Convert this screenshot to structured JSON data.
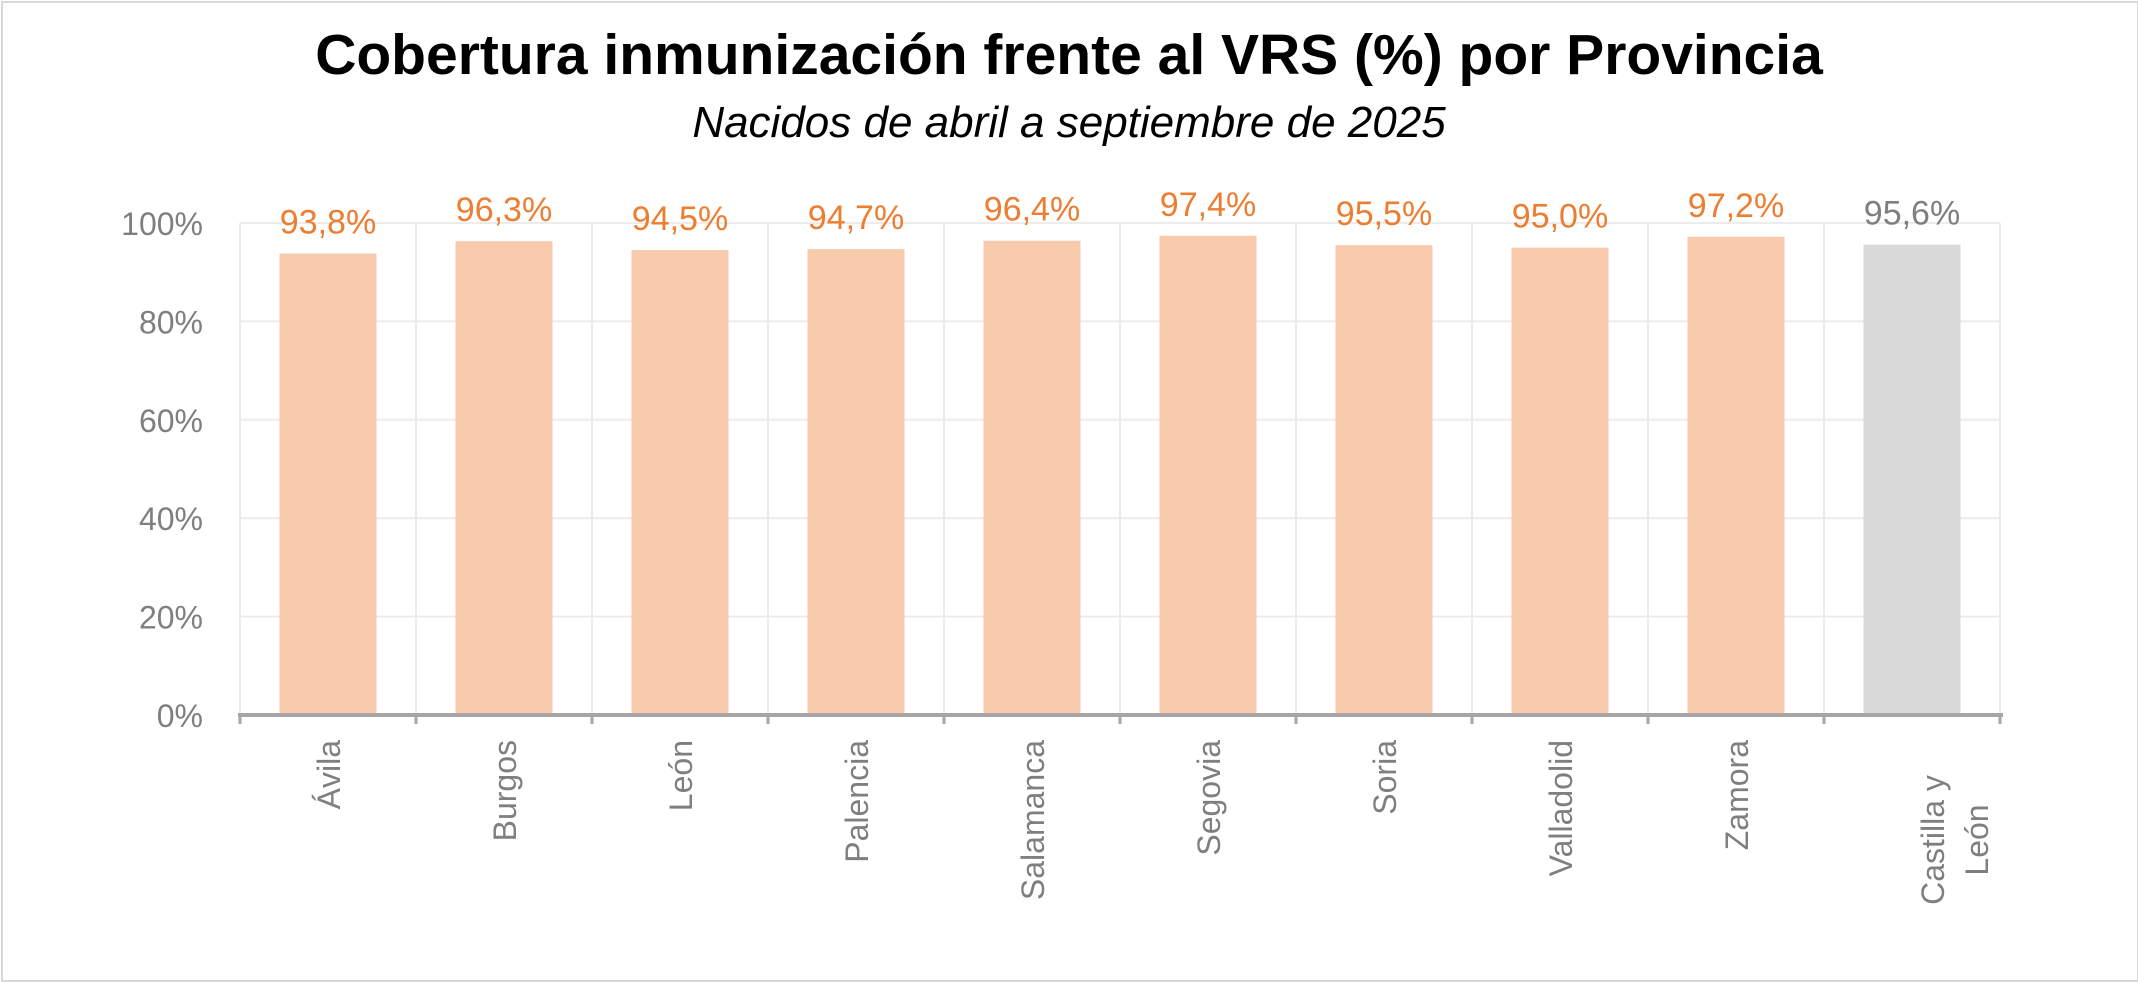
{
  "chart_data": {
    "type": "bar",
    "title": "Cobertura inmunización frente al VRS (%) por Provincia",
    "subtitle": "Nacidos de abril a septiembre de 2025",
    "xlabel": "",
    "ylabel": "",
    "ylim": [
      0,
      100
    ],
    "yticks": [
      "0%",
      "20%",
      "40%",
      "60%",
      "80%",
      "100%"
    ],
    "grid": true,
    "legend": "none",
    "categories": [
      [
        "Ávila"
      ],
      [
        "Burgos"
      ],
      [
        "León"
      ],
      [
        "Palencia"
      ],
      [
        "Salamanca"
      ],
      [
        "Segovia"
      ],
      [
        "Soria"
      ],
      [
        "Valladolid"
      ],
      [
        "Zamora"
      ],
      [
        "Castilla y",
        "León"
      ]
    ],
    "values": [
      93.8,
      96.3,
      94.5,
      94.7,
      96.4,
      97.4,
      95.5,
      95.0,
      97.2,
      95.6
    ],
    "data_labels": [
      "93,8%",
      "96,3%",
      "94,5%",
      "94,7%",
      "96,4%",
      "97,4%",
      "95,5%",
      "95,0%",
      "97,2%",
      "95,6%"
    ],
    "colors": {
      "province_bar": "#f8cbad",
      "total_bar": "#d9d9d9",
      "province_label": "#ed7d31",
      "total_label": "#7f7f7f",
      "axis_text": "#7f7f7f",
      "gridline": "#ececec",
      "axis_line": "#a6a6a6"
    }
  }
}
